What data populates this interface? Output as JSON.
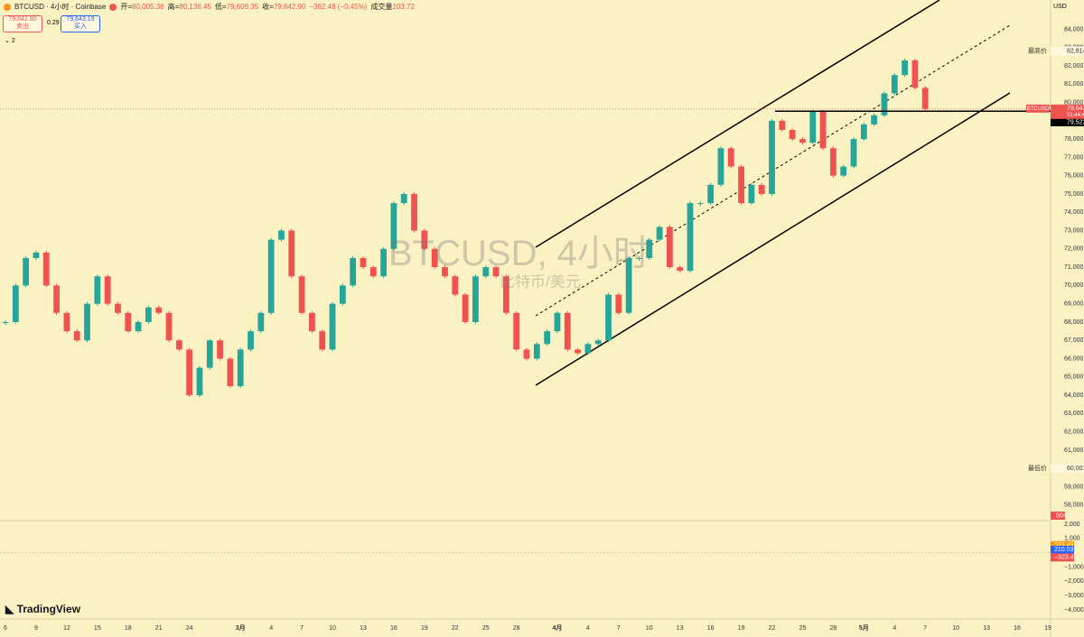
{
  "header": {
    "symbol": "BTCUSD · 4小时 · Coinbase",
    "ohlc": [
      {
        "key": "开=",
        "value": "80,005.38"
      },
      {
        "key": "高=",
        "value": "80,136.45"
      },
      {
        "key": "低=",
        "value": "79,609.35"
      },
      {
        "key": "收=",
        "value": "79,642.90"
      }
    ],
    "change": "−362.48 (−0.45%)",
    "volume_key": "成交量",
    "volume": "103.72",
    "sell_price": "79,642.90",
    "sell": "卖出",
    "spread": "0.29",
    "buy_price": "79,643.19",
    "buy": "买入",
    "indicators_count": "2",
    "currency": "USD"
  },
  "watermark": {
    "title": "BTCUSD, 4小时",
    "subtitle": "比特币/美元"
  },
  "logo": "TradingView",
  "chart_data": [
    {
      "type": "candlestick",
      "up_color": "#26a69a",
      "down_color": "#ef5350",
      "categories": [
        "6",
        null,
        null,
        "9",
        null,
        null,
        "12",
        null,
        null,
        "15",
        null,
        null,
        "18",
        null,
        null,
        "21",
        null,
        null,
        "24",
        null,
        null,
        null,
        null,
        "3月",
        null,
        null,
        "4",
        null,
        null,
        "7",
        null,
        null,
        "10",
        null,
        null,
        "13",
        null,
        null,
        "16",
        null,
        null,
        "19",
        null,
        null,
        "22",
        null,
        null,
        "25",
        null,
        null,
        "28",
        null,
        null,
        null,
        "4月",
        null,
        null,
        "4",
        null,
        null,
        "7",
        null,
        null,
        "10",
        null,
        null,
        "13",
        null,
        null,
        "16",
        null,
        null,
        "19",
        null,
        null,
        "22",
        null,
        null,
        "25",
        null,
        null,
        "28",
        null,
        null,
        "5月",
        null,
        null,
        "4",
        null,
        null,
        "7",
        null,
        null,
        "10",
        null,
        null,
        "13",
        null,
        null,
        "16",
        null,
        null,
        "19"
      ],
      "values": [
        68000,
        70000,
        71500,
        71800,
        70000,
        68500,
        67500,
        67000,
        69000,
        70500,
        69000,
        68500,
        67500,
        68000,
        68800,
        68500,
        67000,
        66500,
        64000,
        65500,
        67000,
        66000,
        64500,
        66500,
        67500,
        68500,
        72500,
        73000,
        70500,
        68500,
        67500,
        66500,
        69000,
        70000,
        71500,
        71000,
        70500,
        72000,
        74500,
        75000,
        73000,
        72000,
        71000,
        70500,
        69500,
        68000,
        70500,
        71000,
        70500,
        68500,
        66500,
        66000,
        66800,
        67500,
        68500,
        66500,
        66300,
        66800,
        67000,
        69500,
        68500,
        71500,
        71500,
        72500,
        73200,
        71000,
        70800,
        74500,
        74500,
        75500,
        77500,
        76500,
        74500,
        75500,
        75000,
        79000,
        78500,
        78000,
        77800,
        79500,
        77500,
        76000,
        76500,
        78000,
        78800,
        79300,
        80500,
        81500,
        82300,
        80800,
        79642.9,
        null,
        null,
        null,
        null,
        null,
        null,
        null,
        null,
        null,
        null,
        null,
        null
      ],
      "ylim": [
        57200,
        85600
      ],
      "yticks": [
        {
          "value": 58000,
          "label": "58,000.00"
        },
        {
          "value": 59000,
          "label": "59,000.00"
        },
        {
          "value": 60000,
          "label": "60,000.00"
        },
        {
          "value": 61000,
          "label": "61,000.00"
        },
        {
          "value": 62000,
          "label": "62,000.00"
        },
        {
          "value": 63000,
          "label": "63,000.00"
        },
        {
          "value": 64000,
          "label": "64,000.00"
        },
        {
          "value": 65000,
          "label": "65,000.00"
        },
        {
          "value": 66000,
          "label": "66,000.00"
        },
        {
          "value": 67000,
          "label": "67,000.00"
        },
        {
          "value": 68000,
          "label": "68,000.00"
        },
        {
          "value": 69000,
          "label": "69,000.00"
        },
        {
          "value": 70000,
          "label": "70,000.00"
        },
        {
          "value": 71000,
          "label": "71,000.00"
        },
        {
          "value": 72000,
          "label": "72,000.00"
        },
        {
          "value": 73000,
          "label": "73,000.00"
        },
        {
          "value": 74000,
          "label": "74,000.00"
        },
        {
          "value": 75000,
          "label": "75,000.00"
        },
        {
          "value": 76000,
          "label": "76,000.00"
        },
        {
          "value": 77000,
          "label": "77,000.00"
        },
        {
          "value": 78000,
          "label": "78,000.00"
        },
        {
          "value": 79000,
          "label": "79,000.00"
        },
        {
          "value": 80000,
          "label": "80,000.00"
        },
        {
          "value": 81000,
          "label": "81,000.00"
        },
        {
          "value": 82000,
          "label": "82,000.00"
        },
        {
          "value": 83000,
          "label": "83,000.00"
        },
        {
          "value": 84000,
          "label": "84,000.00"
        }
      ],
      "price_labels": [
        {
          "caption": "最高价",
          "value": 82814.23,
          "label": "82,814.23"
        },
        {
          "caption": "最低价",
          "value": 60001,
          "label": "60,001.00"
        }
      ],
      "last_price": {
        "caption": "BTCUSD",
        "value": 79642.9,
        "label": "79,642.90",
        "countdown": "01:44:48",
        "color": "#ef5350"
      },
      "level": {
        "value": 79523,
        "label": "79,523.00"
      },
      "volume_label": "504"
    },
    {
      "type": "macd",
      "ylim": [
        -4630,
        2190
      ],
      "yticks": [
        {
          "value": 2000,
          "label": "2,000"
        },
        {
          "value": 1000,
          "label": "1,000"
        },
        {
          "value": -1000,
          "label": "−1,000"
        },
        {
          "value": -2000,
          "label": "−2,000"
        },
        {
          "value": -3000,
          "label": "−3,000"
        },
        {
          "value": -4000,
          "label": "−4,000"
        }
      ],
      "last_values": [
        {
          "value": 533.49,
          "label": "533.49",
          "color": "#ff9800"
        },
        {
          "value": 210.03,
          "label": "210.03",
          "color": "#2962ff"
        },
        {
          "value": -323.46,
          "label": "−323.46",
          "color": "#ef5350"
        }
      ]
    }
  ]
}
